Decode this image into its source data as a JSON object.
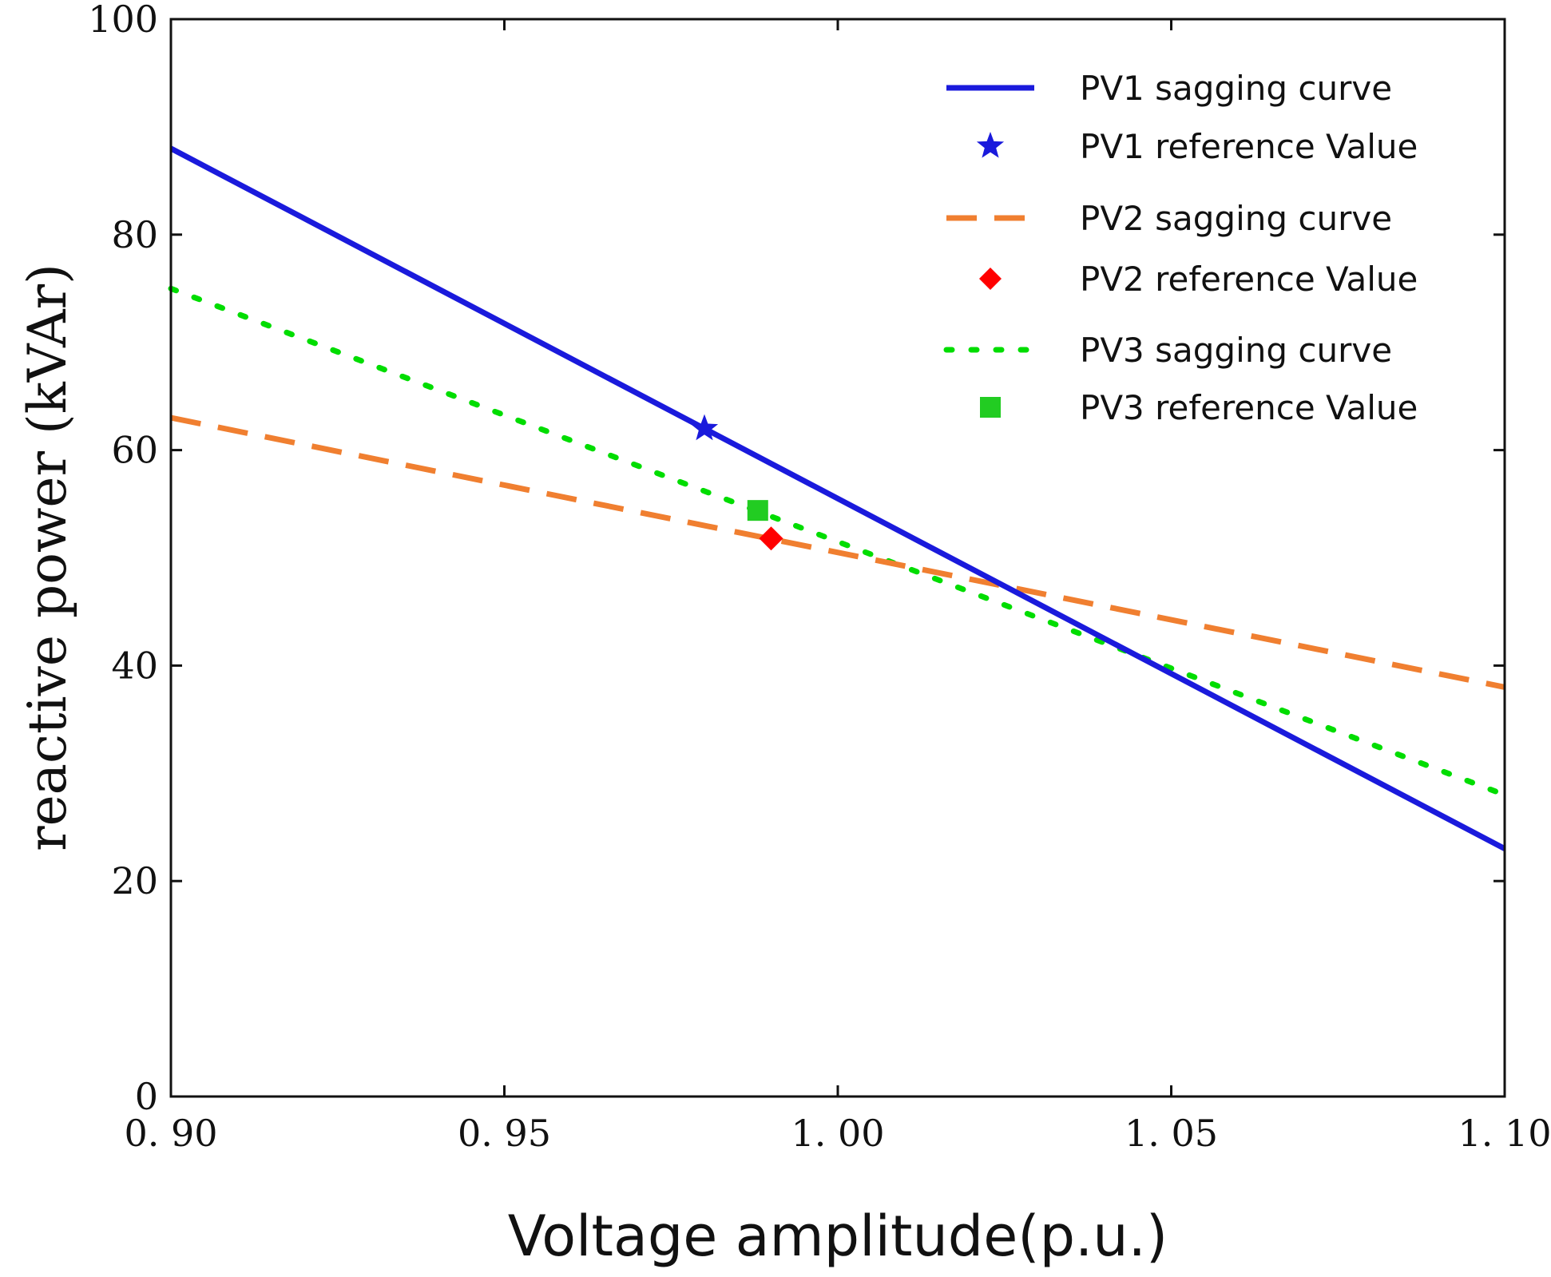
{
  "chart_data": {
    "type": "line",
    "title": "",
    "xlabel": "Voltage amplitude(p.u.)",
    "ylabel": "reactive power (kVAr)",
    "xlim": [
      0.9,
      1.1
    ],
    "ylim": [
      0,
      100
    ],
    "xticks": [
      0.9,
      0.95,
      1.0,
      1.05,
      1.1
    ],
    "xtick_labels": [
      "0. 90",
      "0. 95",
      "1. 00",
      "1. 05",
      "1. 10"
    ],
    "yticks": [
      0,
      20,
      40,
      60,
      80,
      100
    ],
    "ytick_labels": [
      "0",
      "20",
      "40",
      "60",
      "80",
      "100"
    ],
    "grid": false,
    "legend_position": "top-right",
    "series": [
      {
        "name": "PV1 sagging curve",
        "kind": "line",
        "style": "solid",
        "color": "#1a1adc",
        "x": [
          0.9,
          1.1
        ],
        "y": [
          88,
          23
        ]
      },
      {
        "name": "PV1 reference Value",
        "kind": "marker",
        "marker": "star",
        "color": "#1a1adc",
        "x": [
          0.98
        ],
        "y": [
          62
        ]
      },
      {
        "name": "PV2 sagging curve",
        "kind": "line",
        "style": "dashed",
        "color": "#f07f30",
        "x": [
          0.9,
          1.1
        ],
        "y": [
          63,
          38
        ]
      },
      {
        "name": "PV2 reference Value",
        "kind": "marker",
        "marker": "diamond",
        "color": "#ff0000",
        "x": [
          0.99
        ],
        "y": [
          51.8
        ]
      },
      {
        "name": "PV3 sagging curve",
        "kind": "line",
        "style": "dotted",
        "color": "#00dd00",
        "x": [
          0.9,
          1.1
        ],
        "y": [
          75,
          28
        ]
      },
      {
        "name": "PV3 reference Value",
        "kind": "marker",
        "marker": "square",
        "color": "#22cc22",
        "x": [
          0.988
        ],
        "y": [
          54.4
        ]
      }
    ]
  }
}
